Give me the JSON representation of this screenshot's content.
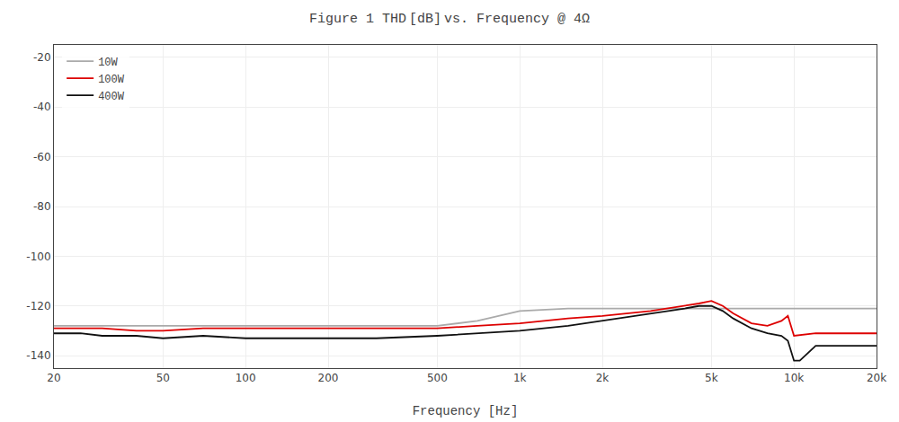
{
  "chart_data": {
    "type": "line",
    "title": "Figure 1 THD [dB] vs. Frequency @ 4Ω",
    "xlabel": "Frequency [Hz]",
    "log": "x",
    "grid": true,
    "legend": "upper left",
    "xlim": [
      20,
      20000
    ],
    "ylim": [
      -145,
      -15
    ],
    "xticks": [
      20,
      50,
      100,
      200,
      500,
      {
        "value": 1000,
        "label": "1k"
      },
      {
        "value": 2000,
        "label": "2k"
      },
      {
        "value": 5000,
        "label": "5k"
      },
      {
        "value": 10000,
        "label": "10k"
      },
      {
        "value": 20000,
        "label": "20k"
      }
    ],
    "yticks": [
      -20,
      -40,
      -60,
      -80,
      -100,
      -120,
      -140
    ],
    "series": [
      {
        "name": "10W",
        "color": "#aaaaaa",
        "x": [
          20,
          500,
          700,
          1000,
          1500,
          2000,
          3000,
          4000,
          5000,
          6000,
          7000,
          8000,
          9000,
          10000,
          12000,
          15000,
          20000
        ],
        "values": [
          -128,
          -128,
          -126,
          -122,
          -121,
          -121,
          -121,
          -121,
          -121,
          -121,
          -121,
          -121,
          -121,
          -121,
          -121,
          -121,
          -121
        ]
      },
      {
        "name": "100W",
        "color": "#dd0000",
        "x": [
          20,
          25,
          30,
          40,
          50,
          70,
          100,
          150,
          200,
          300,
          500,
          700,
          1000,
          1500,
          2000,
          3000,
          4000,
          4500,
          5000,
          5500,
          6000,
          7000,
          8000,
          9000,
          9500,
          10000,
          12000,
          15000,
          20000
        ],
        "values": [
          -129,
          -129,
          -129,
          -130,
          -130,
          -129,
          -129,
          -129,
          -129,
          -129,
          -129,
          -128,
          -127,
          -125,
          -124,
          -122,
          -120,
          -119,
          -118,
          -120,
          -123,
          -127,
          -128,
          -126,
          -124,
          -132,
          -131,
          -131,
          -131
        ]
      },
      {
        "name": "400W",
        "color": "#111111",
        "x": [
          20,
          25,
          30,
          40,
          50,
          70,
          100,
          150,
          200,
          300,
          500,
          700,
          1000,
          1500,
          2000,
          3000,
          4000,
          4500,
          5000,
          5500,
          6000,
          7000,
          8000,
          9000,
          9500,
          10000,
          10500,
          12000,
          15000,
          20000
        ],
        "values": [
          -131,
          -131,
          -132,
          -132,
          -133,
          -132,
          -133,
          -133,
          -133,
          -133,
          -132,
          -131,
          -130,
          -128,
          -126,
          -123,
          -121,
          -120,
          -120,
          -122,
          -125,
          -129,
          -131,
          -132,
          -134,
          -142,
          -142,
          -136,
          -136,
          -136
        ]
      }
    ]
  }
}
